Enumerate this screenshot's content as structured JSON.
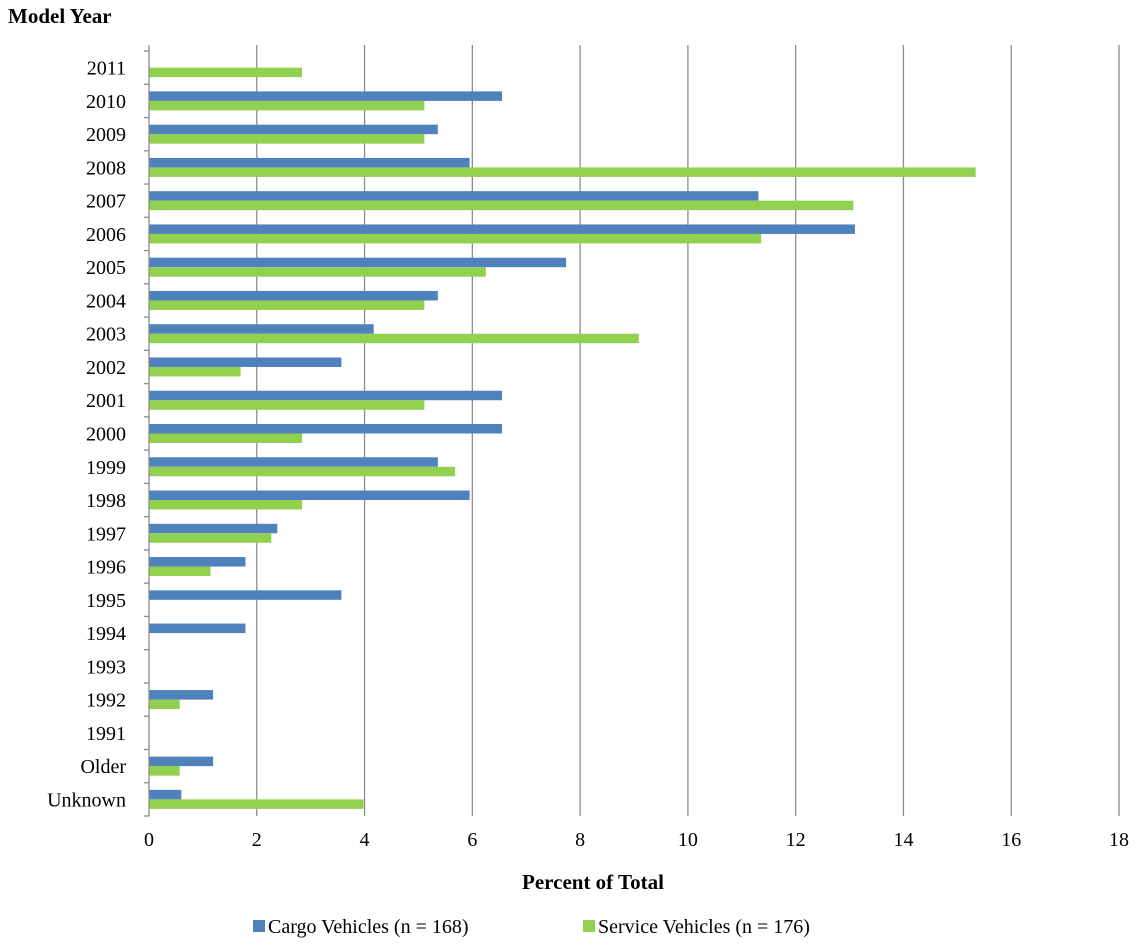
{
  "chart_data": {
    "type": "bar",
    "orientation": "horizontal",
    "title": "",
    "ylabel": "Model Year",
    "xlabel": "Percent of Total",
    "xlim": [
      0,
      18
    ],
    "x_ticks": [
      "0",
      "2",
      "4",
      "6",
      "8",
      "10",
      "12",
      "14",
      "16",
      "18"
    ],
    "grid": "vertical",
    "legend_position": "bottom",
    "categories": [
      "2011",
      "2010",
      "2009",
      "2008",
      "2007",
      "2006",
      "2005",
      "2004",
      "2003",
      "2002",
      "2001",
      "2000",
      "1999",
      "1998",
      "1997",
      "1996",
      "1995",
      "1994",
      "1993",
      "1992",
      "1991",
      "Older",
      "Unknown"
    ],
    "series": [
      {
        "name": "Cargo Vehicles (n = 168)",
        "color": "#4f81bd",
        "values": [
          0,
          6.55,
          5.36,
          5.95,
          11.31,
          13.1,
          7.74,
          5.36,
          4.17,
          3.57,
          6.55,
          6.55,
          5.36,
          5.95,
          2.38,
          1.79,
          3.57,
          1.79,
          0,
          1.19,
          0,
          1.19,
          0.6
        ]
      },
      {
        "name": "Service Vehicles (n = 176)",
        "color": "#92d050",
        "values": [
          2.84,
          5.11,
          5.11,
          15.34,
          13.07,
          11.36,
          6.25,
          5.11,
          9.09,
          1.7,
          5.11,
          2.84,
          5.68,
          2.84,
          2.27,
          1.14,
          0,
          0,
          0,
          0.57,
          0,
          0.57,
          3.98
        ]
      }
    ]
  }
}
